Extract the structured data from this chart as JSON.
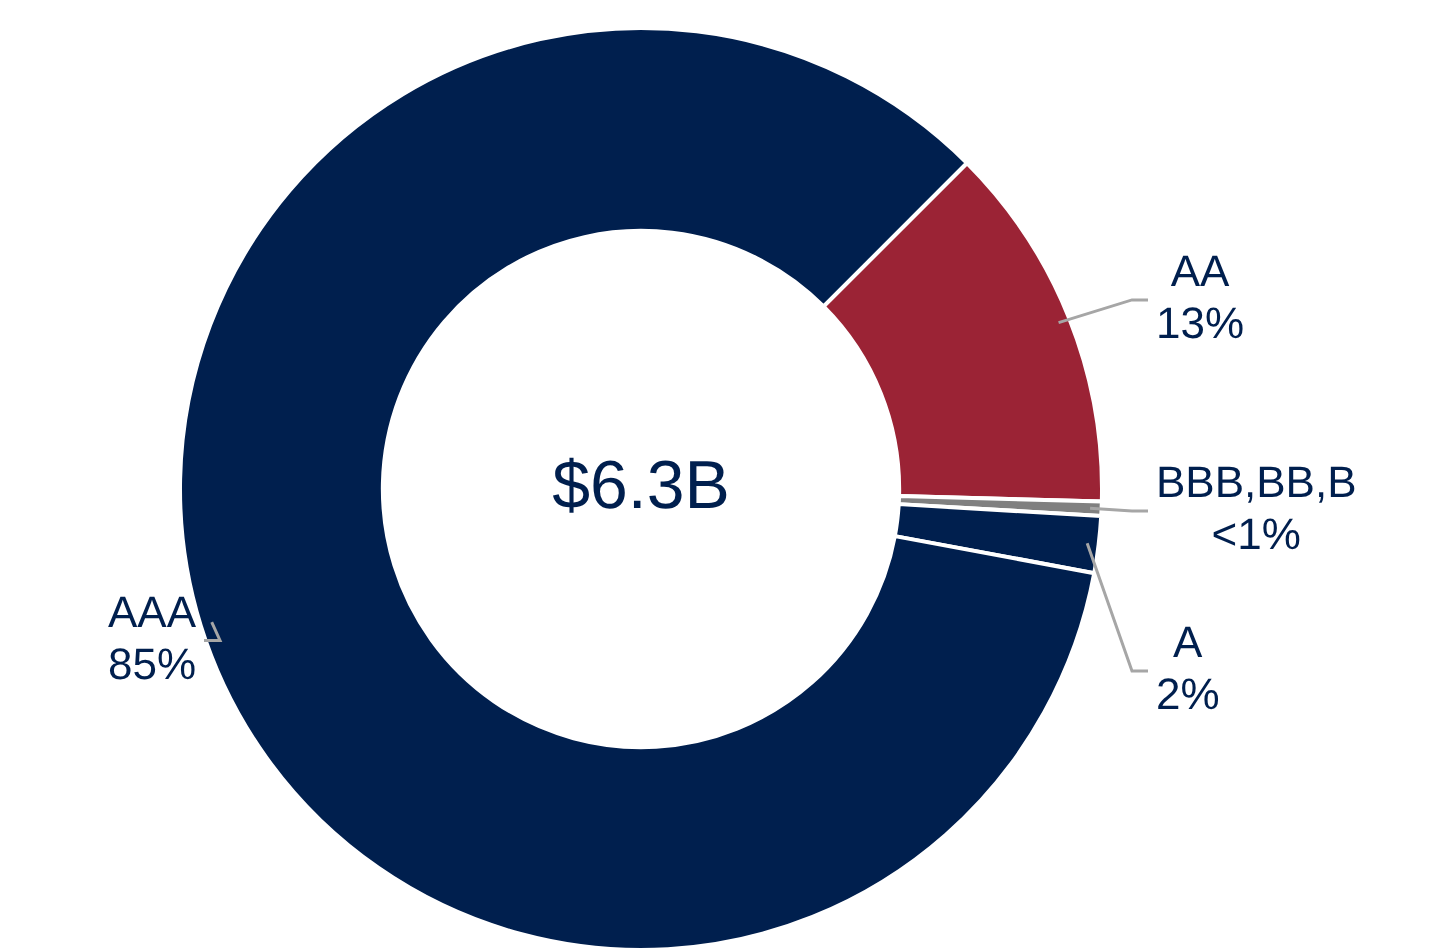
{
  "chart_data": {
    "type": "donut",
    "categories": [
      "AA",
      "BBB,BB,B",
      "A",
      "AAA"
    ],
    "values": [
      13,
      0.5,
      2,
      85
    ],
    "value_labels": [
      "13%",
      "<1%",
      "2%",
      "85%"
    ],
    "colors": [
      "#9b2335",
      "#808080",
      "#001f4e",
      "#001f4e"
    ],
    "annotations": [
      "$6.3B"
    ],
    "legend": false
  }
}
